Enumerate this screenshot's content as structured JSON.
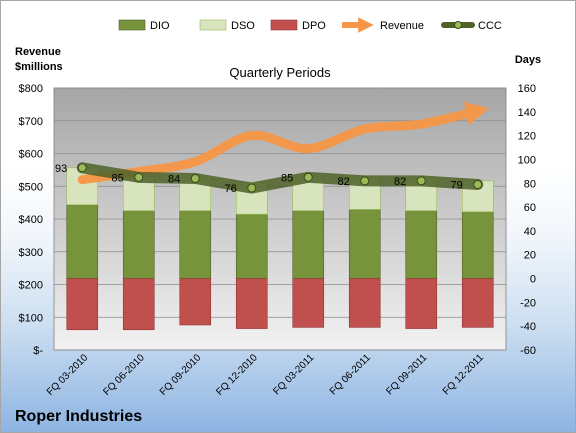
{
  "chart_data": {
    "type": "bar",
    "title": "Quarterly Periods",
    "company": "Roper Industries",
    "y_left_label_line1": "Revenue",
    "y_left_label_line2": "$millions",
    "y_right_label": "Days",
    "categories": [
      "FQ 03-2010",
      "FQ 06-2010",
      "FQ 09-2010",
      "FQ 12-2010",
      "FQ 03-2011",
      "FQ 06-2011",
      "FQ 09-2011",
      "FQ 12-2011"
    ],
    "y_left_ticks": [
      "$-",
      "$100",
      "$200",
      "$300",
      "$400",
      "$500",
      "$600",
      "$700",
      "$800"
    ],
    "y_left_lim": [
      0,
      800
    ],
    "y_right_ticks": [
      "-60",
      "-40",
      "-20",
      "0",
      "20",
      "40",
      "60",
      "80",
      "100",
      "120",
      "140",
      "160"
    ],
    "y_right_lim": [
      -60,
      160
    ],
    "series": [
      {
        "name": "DIO",
        "kind": "stacked-bar",
        "color": "#77933c",
        "values": [
          62,
          57,
          57,
          54,
          57,
          58,
          57,
          56
        ]
      },
      {
        "name": "DSO",
        "kind": "stacked-bar",
        "color": "#d7e4bd",
        "values": [
          31,
          28,
          28,
          27,
          28,
          27,
          28,
          26
        ]
      },
      {
        "name": "DPO",
        "kind": "negative-bar",
        "color": "#c0504d",
        "values": [
          -43,
          -43,
          -39,
          -42,
          -41,
          -41,
          -42,
          -41
        ]
      },
      {
        "name": "Revenue",
        "kind": "trend-arrow",
        "color": "#f79646",
        "values": [
          520,
          545,
          575,
          655,
          615,
          675,
          690,
          730
        ]
      },
      {
        "name": "CCC",
        "kind": "line",
        "color": "#4f6228",
        "values": [
          93,
          85,
          84,
          76,
          85,
          82,
          82,
          79
        ]
      }
    ],
    "ccc_labels": [
      "93",
      "85",
      "84",
      "76",
      "85",
      "82",
      "82",
      "79"
    ],
    "legend": [
      "DIO",
      "DSO",
      "DPO",
      "Revenue",
      "CCC"
    ],
    "legend_position": "top",
    "grid": true
  }
}
